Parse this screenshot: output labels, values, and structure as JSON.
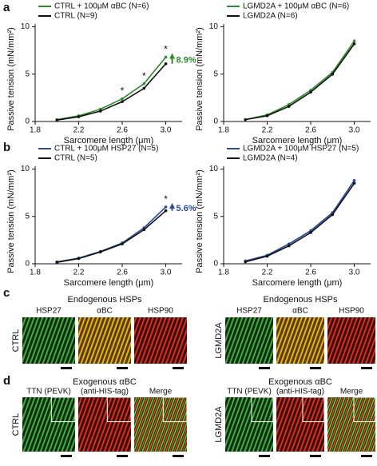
{
  "chart_data": [
    {
      "type": "line",
      "x": [
        2.0,
        2.2,
        2.4,
        2.6,
        2.8,
        3.0
      ],
      "xlim": [
        1.8,
        3.15
      ],
      "xticks": [
        1.8,
        2.2,
        2.6,
        {
          "value": 3,
          "label": "3.0"
        }
      ],
      "ylim": [
        0,
        10.3
      ],
      "yticks": [
        0,
        5,
        10
      ],
      "xlabel": "Sarcomere length (μm)",
      "ylabel": "Passive tension (mN/mm²)",
      "legend": "upper left",
      "series": [
        {
          "name": "CTRL + 100μM αBC (N=6)",
          "color": "#2e8b2e",
          "values": [
            0.2,
            0.6,
            1.3,
            2.4,
            4.0,
            6.8
          ]
        },
        {
          "name": "CTRL (N=9)",
          "color": "#111111",
          "values": [
            0.15,
            0.5,
            1.1,
            2.1,
            3.5,
            6.1
          ]
        }
      ],
      "significance": [
        {
          "text": "*",
          "x": 2.6
        },
        {
          "text": "*",
          "x": 2.8
        },
        {
          "text": "*",
          "x": 3.0
        }
      ],
      "change_label": "8.9%"
    },
    {
      "type": "line",
      "x": [
        2.0,
        2.2,
        2.4,
        2.6,
        2.8,
        3.0
      ],
      "xlim": [
        1.8,
        3.15
      ],
      "xticks": [
        1.8,
        2.2,
        2.6,
        {
          "value": 3,
          "label": "3.0"
        }
      ],
      "ylim": [
        0,
        10.3
      ],
      "yticks": [
        0,
        5,
        10
      ],
      "xlabel": "Sarcomere length (μm)",
      "ylabel": "Passive tension (mN/mm²)",
      "legend": "upper left",
      "series": [
        {
          "name": "LGMD2A + 100μM αBC (N=6)",
          "color": "#2e8b2e",
          "values": [
            0.2,
            0.7,
            1.8,
            3.3,
            5.2,
            8.5
          ]
        },
        {
          "name": "LGMD2A (N=6)",
          "color": "#111111",
          "values": [
            0.2,
            0.6,
            1.6,
            3.1,
            5.0,
            8.2
          ]
        }
      ]
    },
    {
      "type": "line",
      "x": [
        2.0,
        2.2,
        2.4,
        2.6,
        2.8,
        3.0
      ],
      "xlim": [
        1.8,
        3.15
      ],
      "xticks": [
        1.8,
        2.2,
        2.6,
        {
          "value": 3,
          "label": "3.0"
        }
      ],
      "ylim": [
        0,
        10.3
      ],
      "yticks": [
        0,
        5,
        10
      ],
      "xlabel": "Sarcomere length (μm)",
      "ylabel": "Passive tension (mN/mm²)",
      "legend": "upper left",
      "series": [
        {
          "name": "CTRL + 100μM HSP27 (N=5)",
          "color": "#2b4c9a",
          "values": [
            0.2,
            0.6,
            1.3,
            2.2,
            3.8,
            6.0
          ]
        },
        {
          "name": "CTRL (N=5)",
          "color": "#111111",
          "values": [
            0.15,
            0.55,
            1.25,
            2.1,
            3.6,
            5.6
          ]
        }
      ],
      "significance": [
        {
          "text": "*",
          "x": 3.0
        }
      ],
      "change_label": "5.6%"
    },
    {
      "type": "line",
      "x": [
        2.0,
        2.2,
        2.4,
        2.6,
        2.8,
        3.0
      ],
      "xlim": [
        1.8,
        3.15
      ],
      "xticks": [
        1.8,
        2.2,
        2.6,
        {
          "value": 3,
          "label": "3.0"
        }
      ],
      "ylim": [
        0,
        10.3
      ],
      "yticks": [
        0,
        5,
        10
      ],
      "xlabel": "Sarcomere length (μm)",
      "ylabel": "Passive tension (mN/mm²)",
      "legend": "upper left",
      "series": [
        {
          "name": "LGMD2A + 100μM HSP27 (N=5)",
          "color": "#2b4c9a",
          "values": [
            0.3,
            0.9,
            2.1,
            3.5,
            5.4,
            8.8
          ]
        },
        {
          "name": "LGMD2A (N=4)",
          "color": "#111111",
          "values": [
            0.2,
            0.8,
            1.9,
            3.3,
            5.2,
            8.5
          ]
        }
      ]
    }
  ],
  "panel_labels": [
    "a",
    "b",
    "c",
    "d"
  ],
  "panels": {
    "c": {
      "heading": "Endogenous HSPs",
      "groups": [
        {
          "row_label": "CTRL",
          "columns": [
            "HSP27",
            "αBC",
            "HSP90"
          ]
        },
        {
          "row_label": "LGMD2A",
          "columns": [
            "HSP27",
            "αBC",
            "HSP90"
          ]
        }
      ]
    },
    "d": {
      "heading": "Exogenous αBC",
      "groups": [
        {
          "row_label": "CTRL",
          "columns": [
            "TTN (PEVK)",
            "(anti-HIS-tag)",
            "Merge"
          ]
        },
        {
          "row_label": "LGMD2A",
          "columns": [
            "TTN (PEVK)",
            "(anti-HIS-tag)",
            "Merge"
          ]
        }
      ]
    }
  }
}
